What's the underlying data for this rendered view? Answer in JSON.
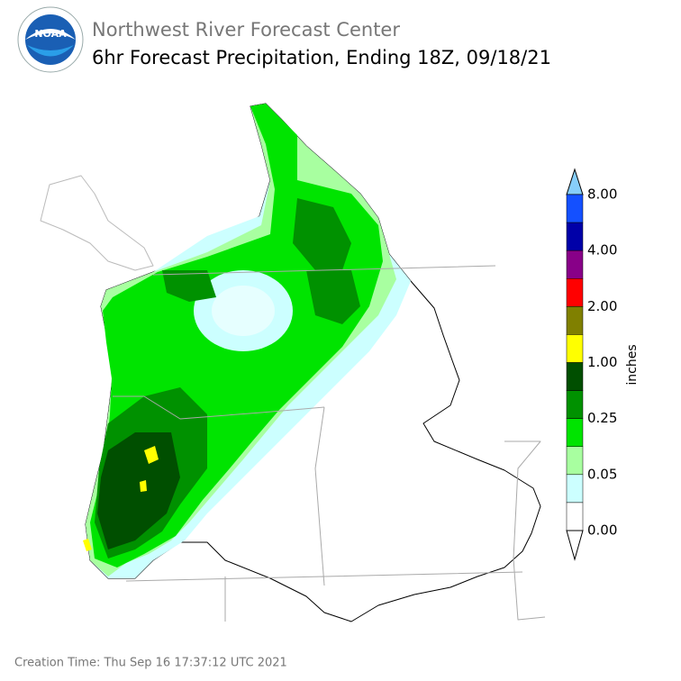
{
  "logo": {
    "text": "NOAA"
  },
  "header": {
    "agency": "Northwest River Forecast Center",
    "title": "6hr Forecast Precipitation, Ending 18Z, 09/18/21"
  },
  "colorbar": {
    "unit": "inches",
    "labels": [
      "8.00",
      "4.00",
      "2.00",
      "1.00",
      "0.25",
      "0.05",
      "0.00"
    ],
    "colors": [
      "#87cefa",
      "#1450ff",
      "#0000a8",
      "#880088",
      "#ff0000",
      "#808000",
      "#ffff00",
      "#004f00",
      "#009100",
      "#00e400",
      "#a8ffa0",
      "#ccffff",
      "#ffffff",
      "#ffffff"
    ]
  },
  "footer": {
    "creation_time": "Creation Time: Thu Sep 16 17:37:12 UTC 2021"
  }
}
